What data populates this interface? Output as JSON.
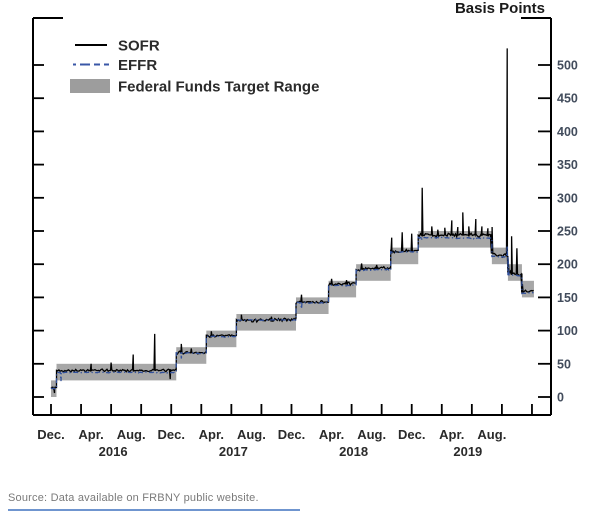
{
  "source": {
    "text": "Source: Data available on FRBNY public website."
  },
  "bottom_underline_color": "#6f95cf",
  "chart_data": {
    "type": "line",
    "title": "Basis Points",
    "legend": [
      {
        "label": "SOFR",
        "swatch": "line",
        "color": "#000000"
      },
      {
        "label": "EFFR",
        "swatch": "dashline",
        "color": "#3a57a7"
      },
      {
        "label": "Federal Funds Target Range",
        "swatch": "box",
        "color": "#9d9d9d"
      }
    ],
    "colors": {
      "sofr": "#000000",
      "effr": "#32519b",
      "band": "#a7a7a7",
      "axis": "#000000",
      "y_tick_label": "#424c5c",
      "x_tick_label": "#2a2a2a",
      "title": "#1a1a1a"
    },
    "y_axis": {
      "side": "right",
      "min": 0,
      "max": 500,
      "tick_step": 50,
      "tick_labels": [
        0,
        50,
        100,
        150,
        200,
        250,
        300,
        350,
        400,
        450,
        500
      ]
    },
    "x_axis": {
      "start": "Dec 2015",
      "end": "Dec 2019",
      "tick_interval_months": 3,
      "tick_count": 17,
      "month_labels": [
        {
          "m": 0,
          "text": "Dec."
        },
        {
          "m": 4,
          "text": "Apr."
        },
        {
          "m": 8,
          "text": "Aug."
        },
        {
          "m": 12,
          "text": "Dec."
        },
        {
          "m": 16,
          "text": "Apr."
        },
        {
          "m": 20,
          "text": "Aug."
        },
        {
          "m": 24,
          "text": "Dec."
        },
        {
          "m": 28,
          "text": "Apr."
        },
        {
          "m": 32,
          "text": "Aug."
        },
        {
          "m": 36,
          "text": "Dec."
        },
        {
          "m": 40,
          "text": "Apr."
        },
        {
          "m": 44,
          "text": "Aug."
        }
      ],
      "year_labels": [
        {
          "m": 6.2,
          "text": "2016"
        },
        {
          "m": 18.2,
          "text": "2017"
        },
        {
          "m": 30.2,
          "text": "2018"
        },
        {
          "m": 41.6,
          "text": "2019"
        }
      ]
    },
    "target_range_steps": [
      {
        "from": 0.0,
        "to": 0.55,
        "low": 0,
        "high": 25
      },
      {
        "from": 0.55,
        "to": 12.5,
        "low": 25,
        "high": 50
      },
      {
        "from": 12.5,
        "to": 15.5,
        "low": 50,
        "high": 75
      },
      {
        "from": 15.5,
        "to": 18.5,
        "low": 75,
        "high": 100
      },
      {
        "from": 18.5,
        "to": 24.45,
        "low": 100,
        "high": 125
      },
      {
        "from": 24.45,
        "to": 27.7,
        "low": 125,
        "high": 150
      },
      {
        "from": 27.7,
        "to": 30.45,
        "low": 150,
        "high": 175
      },
      {
        "from": 30.45,
        "to": 33.9,
        "low": 175,
        "high": 200
      },
      {
        "from": 33.9,
        "to": 36.65,
        "low": 200,
        "high": 225
      },
      {
        "from": 36.65,
        "to": 44.0,
        "low": 225,
        "high": 250
      },
      {
        "from": 44.0,
        "to": 45.6,
        "low": 200,
        "high": 225
      },
      {
        "from": 45.6,
        "to": 47.0,
        "low": 175,
        "high": 200
      },
      {
        "from": 47.0,
        "to": 48.2,
        "low": 150,
        "high": 175
      }
    ],
    "series": [
      {
        "name": "SOFR",
        "segments": [
          {
            "from": 0.0,
            "to": 0.55,
            "v0": 13,
            "v1": 14,
            "amp": 3.0
          },
          {
            "from": 0.55,
            "to": 12.5,
            "v0": 40,
            "v1": 40,
            "amp": 2.5
          },
          {
            "from": 12.5,
            "to": 15.5,
            "v0": 67,
            "v1": 67,
            "amp": 2.5
          },
          {
            "from": 15.5,
            "to": 18.5,
            "v0": 92,
            "v1": 92,
            "amp": 2.5
          },
          {
            "from": 18.5,
            "to": 24.45,
            "v0": 115,
            "v1": 117,
            "amp": 3.0
          },
          {
            "from": 24.45,
            "to": 27.7,
            "v0": 143,
            "v1": 143,
            "amp": 3.0
          },
          {
            "from": 27.7,
            "to": 30.45,
            "v0": 169,
            "v1": 171,
            "amp": 3.0
          },
          {
            "from": 30.45,
            "to": 33.9,
            "v0": 192,
            "v1": 195,
            "amp": 3.5
          },
          {
            "from": 33.9,
            "to": 36.65,
            "v0": 218,
            "v1": 220,
            "amp": 3.5
          },
          {
            "from": 36.65,
            "to": 44.0,
            "v0": 244,
            "v1": 244,
            "amp": 3.5
          },
          {
            "from": 44.0,
            "to": 45.55,
            "v0": 216,
            "v1": 212,
            "amp": 3.5
          },
          {
            "from": 45.6,
            "to": 47.0,
            "v0": 187,
            "v1": 184,
            "amp": 3.5
          },
          {
            "from": 47.0,
            "to": 48.15,
            "v0": 158,
            "v1": 160,
            "amp": 2.5
          }
        ],
        "spikes": [
          [
            0.35,
            6
          ],
          [
            4.0,
            50
          ],
          [
            6.0,
            52
          ],
          [
            8.2,
            64
          ],
          [
            10.35,
            95
          ],
          [
            11.9,
            27
          ],
          [
            13.0,
            80
          ],
          [
            14.0,
            73
          ],
          [
            16.0,
            99
          ],
          [
            19.0,
            124
          ],
          [
            22.0,
            121
          ],
          [
            25.0,
            154
          ],
          [
            28.0,
            178
          ],
          [
            29.5,
            176
          ],
          [
            31.0,
            201
          ],
          [
            32.5,
            199
          ],
          [
            34.0,
            240
          ],
          [
            35.05,
            248
          ],
          [
            36.0,
            246
          ],
          [
            37.05,
            315
          ],
          [
            38.0,
            257
          ],
          [
            38.6,
            252
          ],
          [
            39.3,
            255
          ],
          [
            40.0,
            266
          ],
          [
            40.6,
            256
          ],
          [
            41.1,
            278
          ],
          [
            41.7,
            257
          ],
          [
            42.4,
            268
          ],
          [
            43.0,
            257
          ],
          [
            43.6,
            254
          ],
          [
            44.02,
            256
          ],
          [
            45.53,
            525
          ],
          [
            45.97,
            242
          ],
          [
            46.5,
            224
          ],
          [
            47.05,
            170
          ]
        ]
      },
      {
        "name": "EFFR",
        "segments": [
          {
            "from": 0.0,
            "to": 0.55,
            "v0": 13,
            "v1": 13,
            "amp": 1.5
          },
          {
            "from": 0.55,
            "to": 12.5,
            "v0": 37,
            "v1": 37,
            "amp": 1.0
          },
          {
            "from": 12.5,
            "to": 15.5,
            "v0": 66,
            "v1": 66,
            "amp": 1.0
          },
          {
            "from": 15.5,
            "to": 18.5,
            "v0": 91,
            "v1": 91,
            "amp": 1.0
          },
          {
            "from": 18.5,
            "to": 24.45,
            "v0": 116,
            "v1": 116,
            "amp": 1.0
          },
          {
            "from": 24.45,
            "to": 27.7,
            "v0": 142,
            "v1": 142,
            "amp": 1.0
          },
          {
            "from": 27.7,
            "to": 30.45,
            "v0": 168,
            "v1": 168,
            "amp": 1.0
          },
          {
            "from": 30.45,
            "to": 33.9,
            "v0": 191,
            "v1": 192,
            "amp": 1.0
          },
          {
            "from": 33.9,
            "to": 36.65,
            "v0": 218,
            "v1": 219,
            "amp": 1.0
          },
          {
            "from": 36.65,
            "to": 44.0,
            "v0": 240,
            "v1": 239,
            "amp": 1.2
          },
          {
            "from": 44.0,
            "to": 45.6,
            "v0": 212,
            "v1": 211,
            "amp": 1.2
          },
          {
            "from": 45.6,
            "to": 47.0,
            "v0": 184,
            "v1": 182,
            "amp": 1.2
          },
          {
            "from": 47.0,
            "to": 48.15,
            "v0": 156,
            "v1": 157,
            "amp": 1.0
          }
        ],
        "spikes": [
          [
            1.0,
            24
          ],
          [
            13.0,
            58
          ],
          [
            25.0,
            133
          ],
          [
            37.0,
            236
          ],
          [
            45.53,
            228
          ]
        ]
      }
    ]
  }
}
